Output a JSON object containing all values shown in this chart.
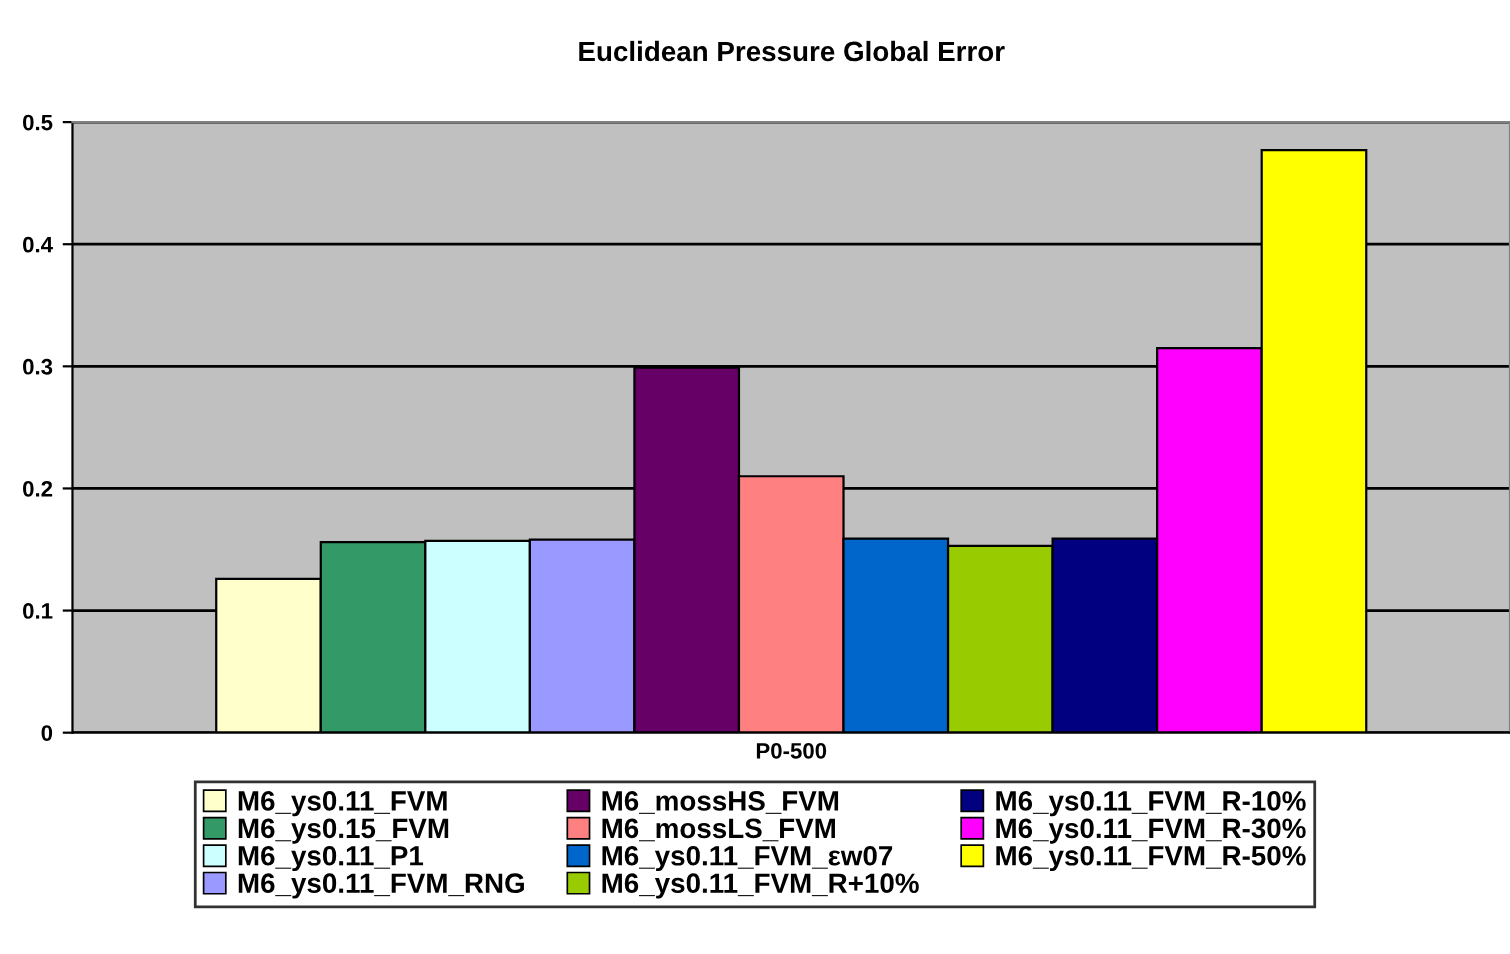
{
  "chart_data": {
    "type": "bar",
    "title": "Euclidean Pressure Global Error",
    "categories": [
      "P0-500"
    ],
    "series": [
      {
        "name": "M6_ys0.11_FVM",
        "color": "#ffffcc",
        "values": [
          0.126
        ]
      },
      {
        "name": "M6_ys0.15_FVM",
        "color": "#339966",
        "values": [
          0.156
        ]
      },
      {
        "name": "M6_ys0.11_P1",
        "color": "#ccffff",
        "values": [
          0.157
        ]
      },
      {
        "name": "M6_ys0.11_FVM_RNG",
        "color": "#9999ff",
        "values": [
          0.158
        ]
      },
      {
        "name": "M6_mossHS_FVM",
        "color": "#660066",
        "values": [
          0.299
        ]
      },
      {
        "name": "M6_mossLS_FVM",
        "color": "#ff8080",
        "values": [
          0.21
        ]
      },
      {
        "name": "M6_ys0.11_FVM_εw07",
        "color": "#0066cc",
        "values": [
          0.159
        ]
      },
      {
        "name": "M6_ys0.11_FVM_R+10%",
        "color": "#99cc00",
        "values": [
          0.153
        ]
      },
      {
        "name": "M6_ys0.11_FVM_R-10%",
        "color": "#000080",
        "values": [
          0.159
        ]
      },
      {
        "name": "M6_ys0.11_FVM_R-30%",
        "color": "#ff00ff",
        "values": [
          0.315
        ]
      },
      {
        "name": "M6_ys0.11_FVM_R-50%",
        "color": "#ffff00",
        "values": [
          0.477
        ]
      }
    ],
    "ylim": [
      0,
      0.5
    ],
    "yticks": [
      0,
      0.1,
      0.2,
      0.3,
      0.4,
      0.5
    ],
    "grid": "y",
    "legend": "bottom"
  }
}
